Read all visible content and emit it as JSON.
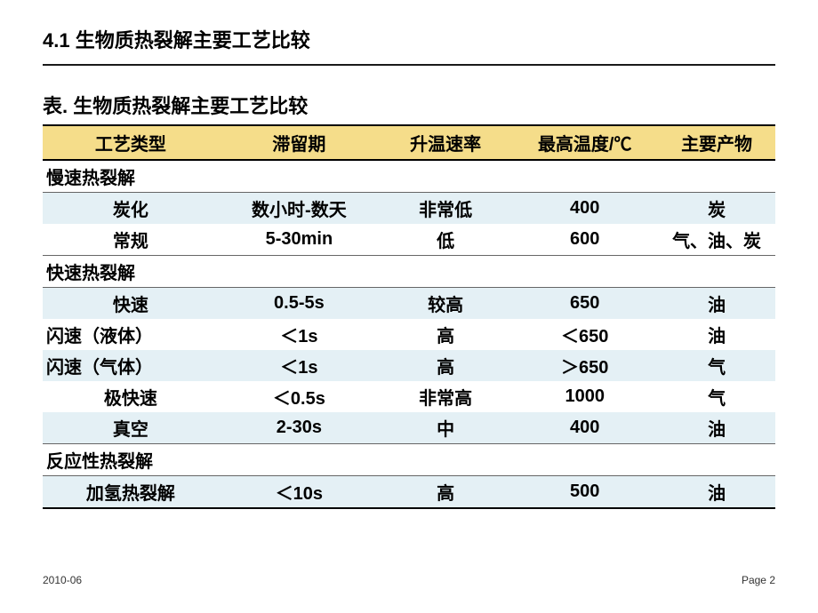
{
  "section_title": "4.1 生物质热裂解主要工艺比较",
  "table_caption": "表. 生物质热裂解主要工艺比较",
  "colors": {
    "header_bg": "#f5dd8a",
    "shade_bg": "#e4f0f5",
    "plain_bg": "#ffffff"
  },
  "columns": [
    "工艺类型",
    "滞留期",
    "升温速率",
    "最高温度/℃",
    "主要产物"
  ],
  "rows": [
    {
      "type": "section",
      "label": "慢速热裂解"
    },
    {
      "type": "data",
      "shaded": true,
      "cells": [
        "炭化",
        "数小时-数天",
        "非常低",
        "400",
        "炭"
      ]
    },
    {
      "type": "data",
      "shaded": false,
      "cells": [
        "常规",
        "5-30min",
        "低",
        "600",
        "气、油、炭"
      ],
      "border_bottom": true
    },
    {
      "type": "section",
      "label": "快速热裂解"
    },
    {
      "type": "data",
      "shaded": true,
      "cells": [
        "快速",
        "0.5-5s",
        "较高",
        "650",
        "油"
      ]
    },
    {
      "type": "data",
      "shaded": false,
      "cells": [
        "闪速（液体）",
        "＜1s",
        "高",
        "＜650",
        "油"
      ],
      "left_first": true
    },
    {
      "type": "data",
      "shaded": true,
      "cells": [
        "闪速（气体）",
        "＜1s",
        "高",
        "＞650",
        "气"
      ],
      "left_first": true
    },
    {
      "type": "data",
      "shaded": false,
      "cells": [
        "极快速",
        "＜0.5s",
        "非常高",
        "1000",
        "气"
      ]
    },
    {
      "type": "data",
      "shaded": true,
      "cells": [
        "真空",
        "2-30s",
        "中",
        "400",
        "油"
      ]
    },
    {
      "type": "section",
      "label": "反应性热裂解",
      "top_border": true
    },
    {
      "type": "data",
      "shaded": true,
      "cells": [
        "加氢热裂解",
        "＜10s",
        "高",
        "500",
        "油"
      ]
    }
  ],
  "footer": {
    "date": "2010-06",
    "page": "Page 2"
  }
}
